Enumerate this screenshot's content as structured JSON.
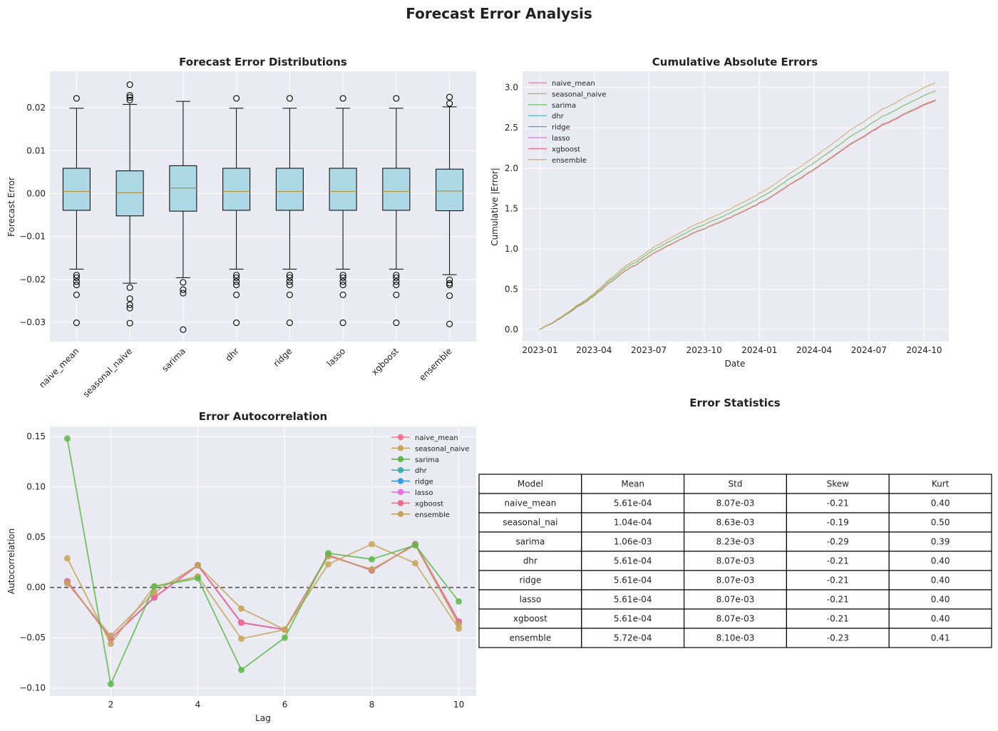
{
  "figure": {
    "title": "Forecast Error Analysis"
  },
  "colors": {
    "naive_mean": "#f2788e",
    "seasonal_naive": "#c8a55a",
    "sarima": "#5cb84a",
    "dhr": "#3fb0b0",
    "ridge": "#3d9be8",
    "lasso": "#e86ee8",
    "xgboost": "#f06a8c",
    "ensemble": "#c4a25a",
    "box_fill": "#add8e6",
    "median": "#b8923a"
  },
  "chart_data": [
    {
      "type": "box",
      "title": "Forecast Error Distributions",
      "xlabel": "",
      "ylabel": "Forecast Error",
      "ylim": [
        -0.0345,
        0.0285
      ],
      "yticks": [
        -0.03,
        -0.02,
        -0.01,
        0.0,
        0.01,
        0.02
      ],
      "ytick_labels": [
        "−0.03",
        "−0.02",
        "−0.01",
        "0.00",
        "0.01",
        "0.02"
      ],
      "categories": [
        "naive_mean",
        "seasonal_naive",
        "sarima",
        "dhr",
        "ridge",
        "lasso",
        "xgboost",
        "ensemble"
      ],
      "boxes": [
        {
          "whislo": -0.0176,
          "q1": -0.0039,
          "med": 0.0005,
          "q3": 0.0059,
          "whishi": 0.0199,
          "fliers": [
            0.0222,
            -0.019,
            -0.0196,
            -0.0205,
            -0.0213,
            -0.0236,
            -0.0301
          ]
        },
        {
          "whislo": -0.0209,
          "q1": -0.0052,
          "med": 0.0002,
          "q3": 0.0053,
          "whishi": 0.0208,
          "fliers": [
            0.0254,
            0.0229,
            0.0224,
            0.0218,
            -0.0219,
            -0.0245,
            -0.0259,
            -0.0267,
            -0.0302
          ]
        },
        {
          "whislo": -0.0196,
          "q1": -0.0041,
          "med": 0.0013,
          "q3": 0.0065,
          "whishi": 0.0215,
          "fliers": [
            -0.0207,
            -0.0224,
            -0.0232,
            -0.0317
          ]
        },
        {
          "whislo": -0.0176,
          "q1": -0.0039,
          "med": 0.0005,
          "q3": 0.0059,
          "whishi": 0.0199,
          "fliers": [
            0.0222,
            -0.019,
            -0.0196,
            -0.0205,
            -0.0213,
            -0.0236,
            -0.0301
          ]
        },
        {
          "whislo": -0.0176,
          "q1": -0.0039,
          "med": 0.0005,
          "q3": 0.0059,
          "whishi": 0.0199,
          "fliers": [
            0.0222,
            -0.019,
            -0.0196,
            -0.0205,
            -0.0213,
            -0.0236,
            -0.0301
          ]
        },
        {
          "whislo": -0.0176,
          "q1": -0.0039,
          "med": 0.0005,
          "q3": 0.0059,
          "whishi": 0.0199,
          "fliers": [
            0.0222,
            -0.019,
            -0.0196,
            -0.0205,
            -0.0213,
            -0.0236,
            -0.0301
          ]
        },
        {
          "whislo": -0.0176,
          "q1": -0.0039,
          "med": 0.0005,
          "q3": 0.0059,
          "whishi": 0.0199,
          "fliers": [
            0.0222,
            -0.019,
            -0.0196,
            -0.0205,
            -0.0213,
            -0.0236,
            -0.0301
          ]
        },
        {
          "whislo": -0.0189,
          "q1": -0.004,
          "med": 0.0006,
          "q3": 0.0057,
          "whishi": 0.0202,
          "fliers": [
            0.0225,
            0.021,
            -0.0201,
            -0.0209,
            -0.0213,
            -0.0238,
            -0.0304
          ]
        }
      ]
    },
    {
      "type": "line",
      "title": "Cumulative Absolute Errors",
      "xlabel": "Date",
      "ylabel": "Cumulative |Error|",
      "x_start": "2022-12-31",
      "x_end": "2024-10-20",
      "xlim": [
        "2022-12-03",
        "2024-11-11"
      ],
      "ylim": [
        -0.15,
        3.2
      ],
      "xticks": [
        "2023-01-01",
        "2023-04-01",
        "2023-07-01",
        "2023-10-01",
        "2024-01-01",
        "2024-04-01",
        "2024-07-01",
        "2024-10-01"
      ],
      "xtick_labels": [
        "2023-01",
        "2023-04",
        "2023-07",
        "2023-10",
        "2024-01",
        "2024-04",
        "2024-07",
        "2024-10"
      ],
      "yticks": [
        0.0,
        0.5,
        1.0,
        1.5,
        2.0,
        2.5,
        3.0
      ],
      "ytick_labels": [
        "0.0",
        "0.5",
        "1.0",
        "1.5",
        "2.0",
        "2.5",
        "3.0"
      ],
      "legend_position": "top-left",
      "series": [
        {
          "name": "naive_mean",
          "final_value": 2.84
        },
        {
          "name": "seasonal_naive",
          "final_value": 3.06
        },
        {
          "name": "sarima",
          "final_value": 2.96
        },
        {
          "name": "dhr",
          "final_value": 2.84
        },
        {
          "name": "ridge",
          "final_value": 2.84
        },
        {
          "name": "lasso",
          "final_value": 2.84
        },
        {
          "name": "xgboost",
          "final_value": 2.84
        },
        {
          "name": "ensemble",
          "final_value": 2.85
        }
      ]
    },
    {
      "type": "line",
      "title": "Error Autocorrelation",
      "xlabel": "Lag",
      "ylabel": "Autocorrelation",
      "xlim": [
        0.6,
        10.4
      ],
      "ylim": [
        -0.108,
        0.16
      ],
      "xticks": [
        2,
        4,
        6,
        8,
        10
      ],
      "xtick_labels": [
        "2",
        "4",
        "6",
        "8",
        "10"
      ],
      "yticks": [
        -0.1,
        -0.05,
        0.0,
        0.05,
        0.1,
        0.15
      ],
      "ytick_labels": [
        "−0.10",
        "−0.05",
        "0.00",
        "0.05",
        "0.10",
        "0.15"
      ],
      "legend_position": "top-right",
      "reference_line": 0.0,
      "x": [
        1,
        2,
        3,
        4,
        5,
        6,
        7,
        8,
        9,
        10
      ],
      "series": [
        {
          "name": "naive_mean",
          "values": [
            0.006,
            -0.051,
            -0.01,
            0.022,
            -0.035,
            -0.042,
            0.032,
            0.017,
            0.043,
            -0.034
          ]
        },
        {
          "name": "seasonal_naive",
          "values": [
            0.029,
            -0.056,
            0.001,
            0.011,
            -0.051,
            -0.042,
            0.023,
            0.043,
            0.024,
            -0.041
          ]
        },
        {
          "name": "sarima",
          "values": [
            0.148,
            -0.096,
            0.001,
            0.009,
            -0.082,
            -0.05,
            0.034,
            0.028,
            0.042,
            -0.014
          ]
        },
        {
          "name": "dhr",
          "values": [
            0.006,
            -0.051,
            -0.01,
            0.022,
            -0.035,
            -0.042,
            0.032,
            0.017,
            0.043,
            -0.034
          ]
        },
        {
          "name": "ridge",
          "values": [
            0.006,
            -0.051,
            -0.01,
            0.022,
            -0.035,
            -0.042,
            0.032,
            0.017,
            0.043,
            -0.034
          ]
        },
        {
          "name": "lasso",
          "values": [
            0.006,
            -0.051,
            -0.01,
            0.022,
            -0.035,
            -0.042,
            0.032,
            0.017,
            0.043,
            -0.034
          ]
        },
        {
          "name": "xgboost",
          "values": [
            0.006,
            -0.051,
            -0.01,
            0.022,
            -0.035,
            -0.042,
            0.032,
            0.017,
            0.043,
            -0.034
          ]
        },
        {
          "name": "ensemble",
          "values": [
            0.004,
            -0.048,
            -0.005,
            0.022,
            -0.021,
            -0.042,
            0.031,
            0.018,
            0.042,
            -0.037
          ]
        }
      ]
    },
    {
      "type": "table",
      "title": "Error Statistics",
      "columns": [
        "Model",
        "Mean",
        "Std",
        "Skew",
        "Kurt"
      ],
      "rows": [
        [
          "naive_mean",
          "5.61e-04",
          "8.07e-03",
          "-0.21",
          "0.40"
        ],
        [
          "seasonal_nai",
          "1.04e-04",
          "8.63e-03",
          "-0.19",
          "0.50"
        ],
        [
          "sarima",
          "1.06e-03",
          "8.23e-03",
          "-0.29",
          "0.39"
        ],
        [
          "dhr",
          "5.61e-04",
          "8.07e-03",
          "-0.21",
          "0.40"
        ],
        [
          "ridge",
          "5.61e-04",
          "8.07e-03",
          "-0.21",
          "0.40"
        ],
        [
          "lasso",
          "5.61e-04",
          "8.07e-03",
          "-0.21",
          "0.40"
        ],
        [
          "xgboost",
          "5.61e-04",
          "8.07e-03",
          "-0.21",
          "0.40"
        ],
        [
          "ensemble",
          "5.72e-04",
          "8.10e-03",
          "-0.23",
          "0.41"
        ]
      ]
    }
  ]
}
